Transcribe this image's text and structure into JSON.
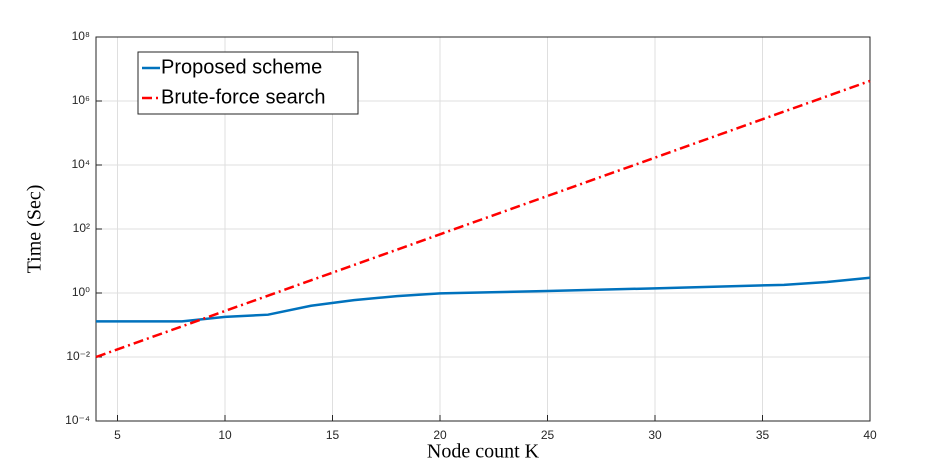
{
  "chart_data": {
    "type": "line",
    "xlabel": "Node count K",
    "ylabel": "Time (Sec)",
    "xlim": [
      4,
      40
    ],
    "xticks": [
      5,
      10,
      15,
      20,
      25,
      30,
      35,
      40
    ],
    "ylim": [
      0.0001,
      100000000
    ],
    "yticks": [
      {
        "value": 0.0001,
        "label": "10⁻⁴"
      },
      {
        "value": 0.01,
        "label": "10⁻²"
      },
      {
        "value": 1,
        "label": "10⁰"
      },
      {
        "value": 100,
        "label": "10²"
      },
      {
        "value": 10000,
        "label": "10⁴"
      },
      {
        "value": 1000000,
        "label": "10⁶"
      },
      {
        "value": 100000000,
        "label": "10⁸"
      }
    ],
    "log_y": true,
    "grid": true,
    "legend": "upper-left",
    "series": [
      {
        "name": "Proposed scheme",
        "color": "#0072bd",
        "dash": "solid",
        "x": [
          4,
          6,
          8,
          10,
          12,
          14,
          16,
          18,
          20,
          25,
          30,
          36,
          38,
          40
        ],
        "values": [
          0.13,
          0.13,
          0.13,
          0.18,
          0.21,
          0.4,
          0.6,
          0.8,
          0.97,
          1.15,
          1.4,
          1.8,
          2.2,
          3
        ]
      },
      {
        "name": "Brute-force search",
        "color": "#ff0000",
        "dash": "dashdot",
        "x": [
          4,
          6,
          8,
          10,
          12,
          14,
          16,
          18,
          20,
          22,
          24,
          26,
          28,
          30,
          32,
          34,
          36,
          38,
          40
        ],
        "values": [
          0.01,
          0.0301,
          0.0909,
          0.274,
          0.826,
          2.49,
          7.51,
          22.6,
          68.3,
          206,
          620,
          1870,
          5640,
          17000,
          51300,
          155000,
          467000,
          1410000,
          4240000
        ]
      }
    ]
  }
}
